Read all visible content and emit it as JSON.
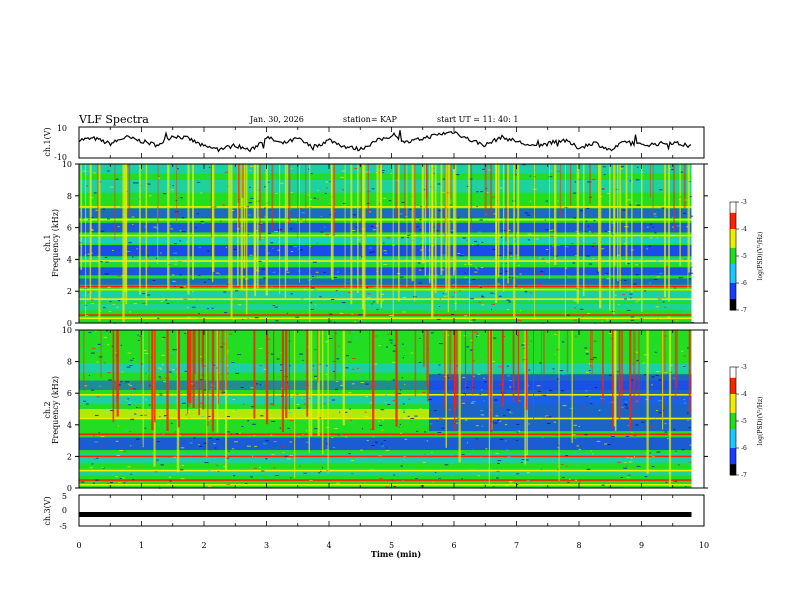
{
  "header": {
    "title": "VLF Spectra",
    "date": "Jan. 30, 2026",
    "station": "station= KAP",
    "start": "start  UT =   11: 40: 1"
  },
  "chart_data": [
    {
      "type": "line",
      "name": "ch1-voltage",
      "ylabel": "ch.1(V)",
      "ylim": [
        -10,
        10
      ],
      "yticks": [
        "10",
        "-10"
      ],
      "description_series": "waveform envelope",
      "x": [
        0,
        0.25,
        0.5,
        0.75,
        1,
        1.25,
        1.5,
        1.75,
        2,
        2.25,
        2.5,
        2.75,
        3,
        3.25,
        3.5,
        3.75,
        4,
        4.25,
        4.5,
        4.75,
        5,
        5.25,
        5.5,
        5.75,
        6,
        6.25,
        6.5,
        6.75,
        7,
        7.25,
        7.5,
        7.75,
        8,
        8.25,
        8.5,
        8.75,
        9,
        9.25,
        9.5,
        9.8
      ],
      "values": [
        2,
        3,
        -1,
        4,
        1,
        -2,
        5,
        3,
        -3,
        -5,
        -2,
        -6,
        4,
        -1,
        3,
        -4,
        2,
        -3,
        -5,
        1,
        5,
        0,
        3,
        6,
        8,
        2,
        -2,
        4,
        1,
        -3,
        -1,
        2,
        -4,
        0,
        -6,
        1,
        -2,
        -1,
        0,
        -3
      ]
    },
    {
      "type": "heatmap",
      "name": "ch1-spectrogram",
      "ylabel": "Frequency (kHz)",
      "channel_label": "ch.1",
      "ylim": [
        0,
        10
      ],
      "yticks": [
        "0",
        "2",
        "4",
        "6",
        "8",
        "10"
      ],
      "colorbar": {
        "label": "log(PSD)(V²/Hz)",
        "ticks": [
          "-3",
          "-4",
          "-5",
          "-6",
          "-7"
        ],
        "range": [
          -7,
          -3
        ]
      }
    },
    {
      "type": "heatmap",
      "name": "ch2-spectrogram",
      "ylabel": "Frequency (kHz)",
      "channel_label": "ch.2",
      "ylim": [
        0,
        10
      ],
      "yticks": [
        "0",
        "2",
        "4",
        "6",
        "8",
        "10"
      ],
      "colorbar": {
        "label": "log(PSD)(V²/Hz)",
        "ticks": [
          "-3",
          "-4",
          "-5",
          "-6",
          "-7"
        ],
        "range": [
          -7,
          -3
        ]
      }
    },
    {
      "type": "line",
      "name": "ch3-voltage",
      "ylabel": "ch.3(V)",
      "ylim": [
        -5,
        5
      ],
      "yticks": [
        "5",
        "0",
        "-5"
      ],
      "level": -1.5
    }
  ],
  "xaxis": {
    "label": "Time (min)",
    "ticks": [
      "0",
      "1",
      "2",
      "3",
      "4",
      "5",
      "6",
      "7",
      "8",
      "9",
      "10"
    ],
    "xlim": [
      0,
      10
    ],
    "data_end": 9.8
  },
  "colors": {
    "dark_blue": "#0000aa",
    "blue": "#1a3cff",
    "cyan": "#19c8ff",
    "green": "#22dd22",
    "yellow": "#eeee00",
    "red": "#ff2200"
  }
}
